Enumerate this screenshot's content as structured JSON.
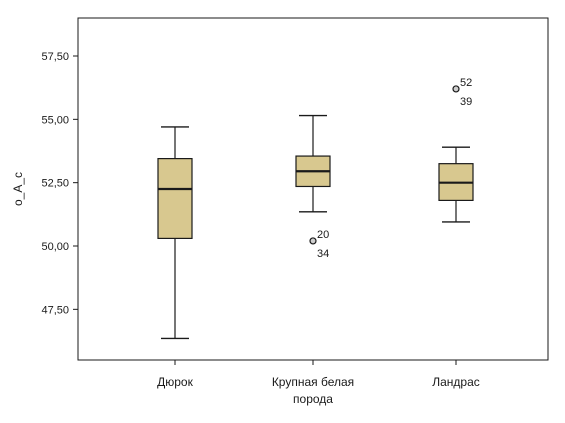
{
  "chart_data": {
    "type": "box",
    "ylabel": "o_A_c",
    "xlabel": "",
    "ylim": [
      45.5,
      59.0
    ],
    "yticks": [
      "47,50",
      "50,00",
      "52,50",
      "55,00",
      "57,50"
    ],
    "ytick_values": [
      47.5,
      50.0,
      52.5,
      55.0,
      57.5
    ],
    "grid": false,
    "colors": {
      "box_fill": "#d8c88f",
      "stroke": "#1a1a1a",
      "outlier_fill": "#cfcfcf"
    },
    "categories": [
      [
        "Дюрок"
      ],
      [
        "Крупная белая",
        "порода"
      ],
      [
        "Ландрас"
      ]
    ],
    "boxes": [
      {
        "whisker_low": 46.35,
        "q1": 50.3,
        "median": 52.25,
        "q3": 53.45,
        "whisker_high": 54.7,
        "outliers": []
      },
      {
        "whisker_low": 51.35,
        "q1": 52.35,
        "median": 52.95,
        "q3": 53.55,
        "whisker_high": 55.15,
        "outliers": [
          {
            "value": 50.2,
            "labels": [
              "20",
              "34"
            ]
          }
        ]
      },
      {
        "whisker_low": 50.95,
        "q1": 51.8,
        "median": 52.5,
        "q3": 53.25,
        "whisker_high": 53.9,
        "outliers": [
          {
            "value": 56.2,
            "labels": [
              "52",
              "39"
            ]
          }
        ]
      }
    ]
  }
}
